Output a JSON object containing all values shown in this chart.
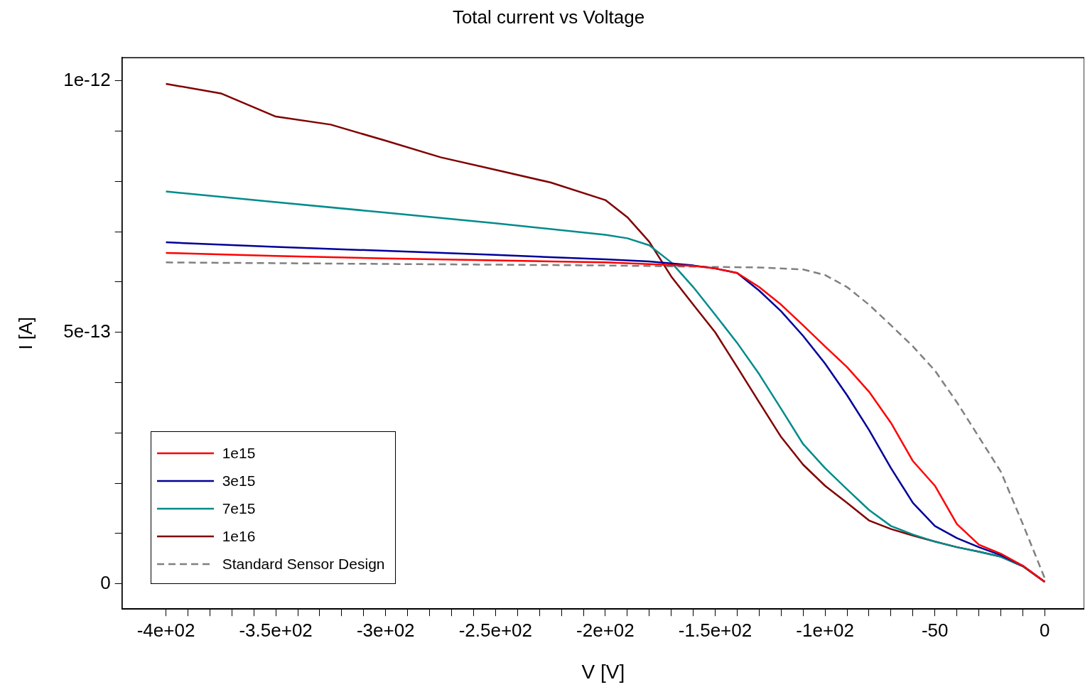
{
  "chart_data": {
    "type": "line",
    "title": "Total current vs Voltage",
    "xlabel": "V [V]",
    "ylabel": "I [A]",
    "xlim": [
      -420,
      18
    ],
    "ylim": [
      -5e-14,
      1.046e-12
    ],
    "xticks": [
      {
        "value": -400,
        "label": "-4e+02"
      },
      {
        "value": -390,
        "label": null
      },
      {
        "value": -380,
        "label": null
      },
      {
        "value": -370,
        "label": null
      },
      {
        "value": -360,
        "label": null
      },
      {
        "value": -350,
        "label": "-3.5e+02"
      },
      {
        "value": -340,
        "label": null
      },
      {
        "value": -330,
        "label": null
      },
      {
        "value": -320,
        "label": null
      },
      {
        "value": -310,
        "label": null
      },
      {
        "value": -300,
        "label": "-3e+02"
      },
      {
        "value": -290,
        "label": null
      },
      {
        "value": -280,
        "label": null
      },
      {
        "value": -270,
        "label": null
      },
      {
        "value": -260,
        "label": null
      },
      {
        "value": -250,
        "label": "-2.5e+02"
      },
      {
        "value": -240,
        "label": null
      },
      {
        "value": -230,
        "label": null
      },
      {
        "value": -220,
        "label": null
      },
      {
        "value": -210,
        "label": null
      },
      {
        "value": -200,
        "label": "-2e+02"
      },
      {
        "value": -190,
        "label": null
      },
      {
        "value": -180,
        "label": null
      },
      {
        "value": -170,
        "label": null
      },
      {
        "value": -160,
        "label": null
      },
      {
        "value": -150,
        "label": "-1.5e+02"
      },
      {
        "value": -140,
        "label": null
      },
      {
        "value": -130,
        "label": null
      },
      {
        "value": -120,
        "label": null
      },
      {
        "value": -110,
        "label": null
      },
      {
        "value": -100,
        "label": "-1e+02"
      },
      {
        "value": -90,
        "label": null
      },
      {
        "value": -80,
        "label": null
      },
      {
        "value": -70,
        "label": null
      },
      {
        "value": -60,
        "label": null
      },
      {
        "value": -50,
        "label": "-50"
      },
      {
        "value": -40,
        "label": null
      },
      {
        "value": -30,
        "label": null
      },
      {
        "value": -20,
        "label": null
      },
      {
        "value": -10,
        "label": null
      },
      0
    ],
    "yticks": [
      0,
      {
        "value": 1e-13,
        "label": null
      },
      {
        "value": 2e-13,
        "label": null
      },
      {
        "value": 3e-13,
        "label": null
      },
      {
        "value": 4e-13,
        "label": null
      },
      {
        "value": 5e-13,
        "label": "5e-13"
      },
      {
        "value": 6e-13,
        "label": null
      },
      {
        "value": 7e-13,
        "label": null
      },
      {
        "value": 8e-13,
        "label": null
      },
      {
        "value": 9e-13,
        "label": null
      },
      {
        "value": 1e-12,
        "label": "1e-12"
      }
    ],
    "grid": false,
    "legend": "bottom left",
    "marker": "none",
    "series": [
      {
        "name": "1e15",
        "color": "#ff0000",
        "x": [
          -400,
          -350,
          -300,
          -250,
          -200,
          -170,
          -160,
          -150,
          -140,
          -130,
          -120,
          -110,
          -100,
          -90,
          -80,
          -70,
          -60,
          -50,
          -40,
          -30,
          -20,
          -10,
          0
        ],
        "values": [
          6.58e-13,
          6.52e-13,
          6.47e-13,
          6.43e-13,
          6.39e-13,
          6.34e-13,
          6.32e-13,
          6.27e-13,
          6.18e-13,
          5.9e-13,
          5.55e-13,
          5.14e-13,
          4.72e-13,
          4.31e-13,
          3.82e-13,
          3.2e-13,
          2.44e-13,
          1.95e-13,
          1.19e-13,
          7.8e-14,
          6e-14,
          3.6e-14,
          4e-15
        ]
      },
      {
        "name": "3e15",
        "color": "#000099",
        "x": [
          -400,
          -350,
          -300,
          -250,
          -200,
          -180,
          -170,
          -160,
          -150,
          -140,
          -130,
          -120,
          -110,
          -100,
          -90,
          -80,
          -70,
          -60,
          -50,
          -40,
          -30,
          -20,
          -10,
          0
        ],
        "values": [
          6.79e-13,
          6.7e-13,
          6.62e-13,
          6.54e-13,
          6.45e-13,
          6.41e-13,
          6.37e-13,
          6.33e-13,
          6.27e-13,
          6.18e-13,
          5.83e-13,
          5.42e-13,
          4.93e-13,
          4.38e-13,
          3.75e-13,
          3.06e-13,
          2.3e-13,
          1.61e-13,
          1.15e-13,
          9.1e-14,
          7.3e-14,
          5.7e-14,
          3.6e-14,
          4e-15
        ]
      },
      {
        "name": "7e15",
        "color": "#008b8b",
        "x": [
          -400,
          -350,
          -300,
          -250,
          -200,
          -190,
          -180,
          -170,
          -160,
          -150,
          -140,
          -130,
          -120,
          -110,
          -100,
          -90,
          -80,
          -70,
          -60,
          -50,
          -40,
          -30,
          -20,
          -10,
          0
        ],
        "values": [
          7.8e-13,
          7.59e-13,
          7.38e-13,
          7.17e-13,
          6.94e-13,
          6.87e-13,
          6.73e-13,
          6.39e-13,
          5.9e-13,
          5.35e-13,
          4.79e-13,
          4.17e-13,
          3.48e-13,
          2.78e-13,
          2.3e-13,
          1.88e-13,
          1.47e-13,
          1.15e-13,
          9.8e-14,
          8.4e-14,
          7.3e-14,
          6.4e-14,
          5.4e-14,
          3.5e-14,
          4e-15
        ]
      },
      {
        "name": "1e16",
        "color": "#800000",
        "x": [
          -400,
          -375,
          -350,
          -325,
          -300,
          -275,
          -250,
          -225,
          -200,
          -190,
          -180,
          -170,
          -160,
          -150,
          -140,
          -130,
          -120,
          -110,
          -100,
          -90,
          -80,
          -70,
          -60,
          -50,
          -40,
          -30,
          -20,
          -10,
          0
        ],
        "values": [
          9.94e-13,
          9.75e-13,
          9.29e-13,
          9.13e-13,
          8.81e-13,
          8.48e-13,
          8.23e-13,
          7.98e-13,
          7.63e-13,
          7.29e-13,
          6.8e-13,
          6.11e-13,
          5.55e-13,
          5e-13,
          4.31e-13,
          3.61e-13,
          2.92e-13,
          2.37e-13,
          1.95e-13,
          1.61e-13,
          1.26e-13,
          1.09e-13,
          9.6e-14,
          8.4e-14,
          7.3e-14,
          6.4e-14,
          5.4e-14,
          3.5e-14,
          4e-15
        ]
      },
      {
        "name": "Standard Sensor Design",
        "color": "#808080",
        "line_style": "dashed",
        "x": [
          -400,
          -300,
          -200,
          -150,
          -130,
          -110,
          -100,
          -90,
          -80,
          -70,
          -60,
          -50,
          -40,
          -30,
          -20,
          -10,
          0
        ],
        "values": [
          6.39e-13,
          6.36e-13,
          6.33e-13,
          6.3e-13,
          6.29e-13,
          6.25e-13,
          6.14e-13,
          5.9e-13,
          5.55e-13,
          5.14e-13,
          4.72e-13,
          4.24e-13,
          3.61e-13,
          2.92e-13,
          2.23e-13,
          1.19e-13,
          1.1e-14
        ]
      }
    ]
  }
}
